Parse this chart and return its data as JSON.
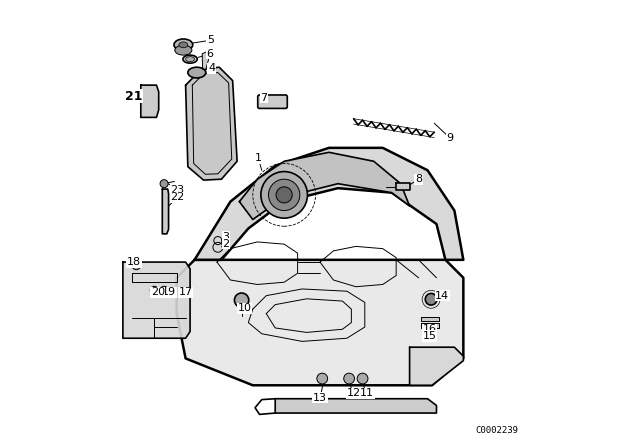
{
  "bg_color": "#ffffff",
  "line_color": "#000000",
  "diagram_code": "C0002239"
}
